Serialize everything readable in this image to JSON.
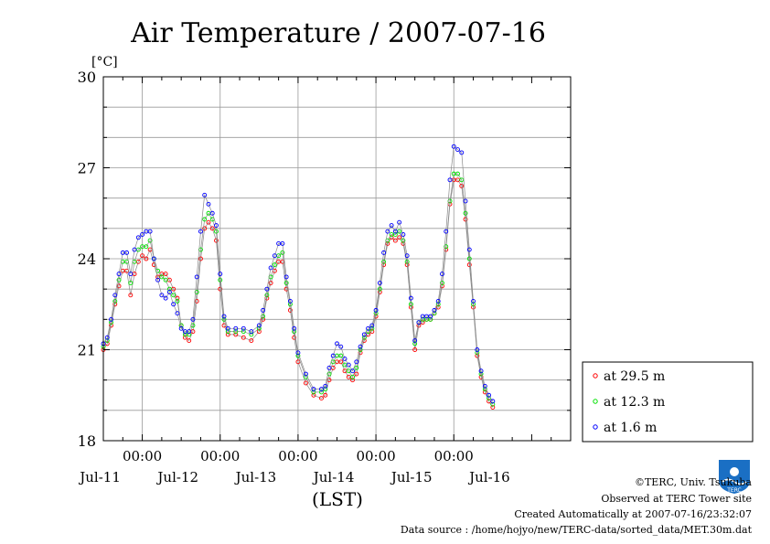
{
  "chart_data": {
    "type": "line",
    "title": "Air Temperature / 2007-07-16",
    "y_unit": "[°C]",
    "xlabel": "(LST)",
    "ylim": [
      18,
      30
    ],
    "yticks": [
      18,
      21,
      24,
      27,
      30
    ],
    "xlim": [
      0,
      6
    ],
    "x_unit": "days from 2007-07-10 12:00 LST",
    "x_time_ticks": [
      {
        "x": 0.5,
        "label": "00:00"
      },
      {
        "x": 1.5,
        "label": "00:00"
      },
      {
        "x": 2.5,
        "label": "00:00"
      },
      {
        "x": 3.5,
        "label": "00:00"
      },
      {
        "x": 4.5,
        "label": "00:00"
      }
    ],
    "x_day_labels": [
      {
        "x": 0.5,
        "label": "Jul-11"
      },
      {
        "x": 1.5,
        "label": "Jul-12"
      },
      {
        "x": 2.5,
        "label": "Jul-13"
      },
      {
        "x": 3.5,
        "label": "Jul-14"
      },
      {
        "x": 4.5,
        "label": "Jul-15"
      },
      {
        "x": 5.5,
        "label": "Jul-16"
      }
    ],
    "grid": true,
    "legend_position": "right-bottom (outside plot)",
    "series": [
      {
        "name": "at 29.5 m",
        "color": "#ff0000",
        "points": [
          [
            0,
            21.0
          ],
          [
            0.05,
            21.2
          ],
          [
            0.1,
            21.8
          ],
          [
            0.15,
            22.5
          ],
          [
            0.2,
            23.1
          ],
          [
            0.25,
            23.6
          ],
          [
            0.3,
            23.6
          ],
          [
            0.35,
            22.8
          ],
          [
            0.4,
            23.5
          ],
          [
            0.45,
            23.9
          ],
          [
            0.5,
            24.1
          ],
          [
            0.55,
            24.0
          ],
          [
            0.6,
            24.3
          ],
          [
            0.65,
            23.8
          ],
          [
            0.7,
            23.4
          ],
          [
            0.75,
            23.5
          ],
          [
            0.8,
            23.5
          ],
          [
            0.85,
            23.3
          ],
          [
            0.9,
            23.0
          ],
          [
            0.95,
            22.7
          ],
          [
            1.0,
            21.8
          ],
          [
            1.05,
            21.4
          ],
          [
            1.1,
            21.3
          ],
          [
            1.15,
            21.6
          ],
          [
            1.2,
            22.6
          ],
          [
            1.25,
            24.0
          ],
          [
            1.3,
            25.0
          ],
          [
            1.35,
            25.2
          ],
          [
            1.4,
            25.0
          ],
          [
            1.45,
            24.6
          ],
          [
            1.5,
            23.0
          ],
          [
            1.55,
            21.8
          ],
          [
            1.6,
            21.5
          ],
          [
            1.7,
            21.5
          ],
          [
            1.8,
            21.4
          ],
          [
            1.9,
            21.3
          ],
          [
            2.0,
            21.6
          ],
          [
            2.05,
            22.0
          ],
          [
            2.1,
            22.7
          ],
          [
            2.15,
            23.2
          ],
          [
            2.2,
            23.6
          ],
          [
            2.25,
            23.9
          ],
          [
            2.3,
            23.9
          ],
          [
            2.35,
            23.0
          ],
          [
            2.4,
            22.3
          ],
          [
            2.45,
            21.4
          ],
          [
            2.5,
            20.6
          ],
          [
            2.6,
            19.9
          ],
          [
            2.7,
            19.5
          ],
          [
            2.8,
            19.4
          ],
          [
            2.85,
            19.5
          ],
          [
            2.9,
            20.0
          ],
          [
            2.95,
            20.4
          ],
          [
            3.0,
            20.6
          ],
          [
            3.05,
            20.6
          ],
          [
            3.1,
            20.3
          ],
          [
            3.15,
            20.1
          ],
          [
            3.2,
            20.0
          ],
          [
            3.25,
            20.2
          ],
          [
            3.3,
            20.9
          ],
          [
            3.35,
            21.3
          ],
          [
            3.4,
            21.5
          ],
          [
            3.45,
            21.6
          ],
          [
            3.5,
            22.1
          ],
          [
            3.55,
            22.9
          ],
          [
            3.6,
            23.8
          ],
          [
            3.65,
            24.5
          ],
          [
            3.7,
            24.7
          ],
          [
            3.75,
            24.6
          ],
          [
            3.8,
            24.7
          ],
          [
            3.85,
            24.5
          ],
          [
            3.9,
            23.8
          ],
          [
            3.95,
            22.4
          ],
          [
            4.0,
            21.0
          ],
          [
            4.05,
            21.8
          ],
          [
            4.1,
            21.9
          ],
          [
            4.15,
            22.0
          ],
          [
            4.2,
            22.0
          ],
          [
            4.25,
            22.2
          ],
          [
            4.3,
            22.4
          ],
          [
            4.35,
            23.1
          ],
          [
            4.4,
            24.3
          ],
          [
            4.45,
            25.8
          ],
          [
            4.5,
            26.6
          ],
          [
            4.55,
            26.6
          ],
          [
            4.6,
            26.4
          ],
          [
            4.65,
            25.3
          ],
          [
            4.7,
            23.8
          ],
          [
            4.75,
            22.4
          ],
          [
            4.8,
            20.8
          ],
          [
            4.85,
            20.1
          ],
          [
            4.9,
            19.6
          ],
          [
            4.95,
            19.3
          ],
          [
            5.0,
            19.1
          ]
        ]
      },
      {
        "name": "at 12.3 m",
        "color": "#00e000",
        "points": [
          [
            0,
            21.1
          ],
          [
            0.05,
            21.3
          ],
          [
            0.1,
            21.9
          ],
          [
            0.15,
            22.6
          ],
          [
            0.2,
            23.3
          ],
          [
            0.25,
            23.9
          ],
          [
            0.3,
            23.9
          ],
          [
            0.35,
            23.2
          ],
          [
            0.4,
            23.9
          ],
          [
            0.45,
            24.3
          ],
          [
            0.5,
            24.4
          ],
          [
            0.55,
            24.4
          ],
          [
            0.6,
            24.6
          ],
          [
            0.65,
            24.0
          ],
          [
            0.7,
            23.6
          ],
          [
            0.75,
            23.4
          ],
          [
            0.8,
            23.3
          ],
          [
            0.85,
            23.0
          ],
          [
            0.9,
            22.8
          ],
          [
            0.95,
            22.6
          ],
          [
            1.0,
            21.8
          ],
          [
            1.05,
            21.5
          ],
          [
            1.1,
            21.5
          ],
          [
            1.15,
            21.8
          ],
          [
            1.2,
            22.9
          ],
          [
            1.25,
            24.3
          ],
          [
            1.3,
            25.3
          ],
          [
            1.35,
            25.5
          ],
          [
            1.4,
            25.3
          ],
          [
            1.45,
            24.9
          ],
          [
            1.5,
            23.3
          ],
          [
            1.55,
            22.0
          ],
          [
            1.6,
            21.6
          ],
          [
            1.7,
            21.6
          ],
          [
            1.8,
            21.6
          ],
          [
            1.9,
            21.5
          ],
          [
            2.0,
            21.7
          ],
          [
            2.05,
            22.1
          ],
          [
            2.1,
            22.8
          ],
          [
            2.15,
            23.4
          ],
          [
            2.2,
            23.8
          ],
          [
            2.25,
            24.1
          ],
          [
            2.3,
            24.2
          ],
          [
            2.35,
            23.2
          ],
          [
            2.4,
            22.5
          ],
          [
            2.45,
            21.6
          ],
          [
            2.5,
            20.8
          ],
          [
            2.6,
            20.1
          ],
          [
            2.7,
            19.6
          ],
          [
            2.8,
            19.6
          ],
          [
            2.85,
            19.7
          ],
          [
            2.9,
            20.2
          ],
          [
            2.95,
            20.6
          ],
          [
            3.0,
            20.8
          ],
          [
            3.05,
            20.8
          ],
          [
            3.1,
            20.5
          ],
          [
            3.15,
            20.3
          ],
          [
            3.2,
            20.1
          ],
          [
            3.25,
            20.4
          ],
          [
            3.3,
            21.0
          ],
          [
            3.35,
            21.4
          ],
          [
            3.4,
            21.6
          ],
          [
            3.45,
            21.7
          ],
          [
            3.5,
            22.2
          ],
          [
            3.55,
            23.0
          ],
          [
            3.6,
            23.9
          ],
          [
            3.65,
            24.6
          ],
          [
            3.7,
            24.8
          ],
          [
            3.75,
            24.8
          ],
          [
            3.8,
            24.9
          ],
          [
            3.85,
            24.6
          ],
          [
            3.9,
            23.9
          ],
          [
            3.95,
            22.5
          ],
          [
            4.0,
            21.2
          ],
          [
            4.05,
            21.9
          ],
          [
            4.1,
            22.0
          ],
          [
            4.15,
            22.0
          ],
          [
            4.2,
            22.0
          ],
          [
            4.25,
            22.2
          ],
          [
            4.3,
            22.5
          ],
          [
            4.35,
            23.2
          ],
          [
            4.4,
            24.4
          ],
          [
            4.45,
            25.9
          ],
          [
            4.5,
            26.8
          ],
          [
            4.55,
            26.8
          ],
          [
            4.6,
            26.6
          ],
          [
            4.65,
            25.5
          ],
          [
            4.7,
            24.0
          ],
          [
            4.75,
            22.5
          ],
          [
            4.8,
            20.9
          ],
          [
            4.85,
            20.2
          ],
          [
            4.9,
            19.7
          ],
          [
            4.95,
            19.4
          ],
          [
            5.0,
            19.2
          ]
        ]
      },
      {
        "name": "at 1.6 m",
        "color": "#0000ff",
        "points": [
          [
            0,
            21.2
          ],
          [
            0.05,
            21.4
          ],
          [
            0.1,
            22.0
          ],
          [
            0.15,
            22.8
          ],
          [
            0.2,
            23.5
          ],
          [
            0.25,
            24.2
          ],
          [
            0.3,
            24.2
          ],
          [
            0.35,
            23.5
          ],
          [
            0.4,
            24.3
          ],
          [
            0.45,
            24.7
          ],
          [
            0.5,
            24.8
          ],
          [
            0.55,
            24.9
          ],
          [
            0.6,
            24.9
          ],
          [
            0.65,
            24.0
          ],
          [
            0.7,
            23.3
          ],
          [
            0.75,
            22.8
          ],
          [
            0.8,
            22.7
          ],
          [
            0.85,
            22.9
          ],
          [
            0.9,
            22.5
          ],
          [
            0.95,
            22.2
          ],
          [
            1.0,
            21.7
          ],
          [
            1.05,
            21.6
          ],
          [
            1.1,
            21.6
          ],
          [
            1.15,
            22.0
          ],
          [
            1.2,
            23.4
          ],
          [
            1.25,
            24.9
          ],
          [
            1.3,
            26.1
          ],
          [
            1.35,
            25.8
          ],
          [
            1.4,
            25.5
          ],
          [
            1.45,
            25.1
          ],
          [
            1.5,
            23.5
          ],
          [
            1.55,
            22.1
          ],
          [
            1.6,
            21.7
          ],
          [
            1.7,
            21.7
          ],
          [
            1.8,
            21.7
          ],
          [
            1.9,
            21.6
          ],
          [
            2.0,
            21.8
          ],
          [
            2.05,
            22.3
          ],
          [
            2.1,
            23.0
          ],
          [
            2.15,
            23.7
          ],
          [
            2.2,
            24.1
          ],
          [
            2.25,
            24.5
          ],
          [
            2.3,
            24.5
          ],
          [
            2.35,
            23.4
          ],
          [
            2.4,
            22.6
          ],
          [
            2.45,
            21.7
          ],
          [
            2.5,
            20.9
          ],
          [
            2.6,
            20.2
          ],
          [
            2.7,
            19.7
          ],
          [
            2.8,
            19.7
          ],
          [
            2.85,
            19.8
          ],
          [
            2.9,
            20.4
          ],
          [
            2.95,
            20.8
          ],
          [
            3.0,
            21.2
          ],
          [
            3.05,
            21.1
          ],
          [
            3.1,
            20.7
          ],
          [
            3.15,
            20.5
          ],
          [
            3.2,
            20.3
          ],
          [
            3.25,
            20.6
          ],
          [
            3.3,
            21.1
          ],
          [
            3.35,
            21.5
          ],
          [
            3.4,
            21.7
          ],
          [
            3.45,
            21.8
          ],
          [
            3.5,
            22.3
          ],
          [
            3.55,
            23.2
          ],
          [
            3.6,
            24.2
          ],
          [
            3.65,
            24.9
          ],
          [
            3.7,
            25.1
          ],
          [
            3.75,
            24.9
          ],
          [
            3.8,
            25.2
          ],
          [
            3.85,
            24.8
          ],
          [
            3.9,
            24.1
          ],
          [
            3.95,
            22.7
          ],
          [
            4.0,
            21.3
          ],
          [
            4.05,
            21.9
          ],
          [
            4.1,
            22.1
          ],
          [
            4.15,
            22.1
          ],
          [
            4.2,
            22.1
          ],
          [
            4.25,
            22.3
          ],
          [
            4.3,
            22.6
          ],
          [
            4.35,
            23.5
          ],
          [
            4.4,
            24.9
          ],
          [
            4.45,
            26.6
          ],
          [
            4.5,
            27.7
          ],
          [
            4.55,
            27.6
          ],
          [
            4.6,
            27.5
          ],
          [
            4.65,
            25.9
          ],
          [
            4.7,
            24.3
          ],
          [
            4.75,
            22.6
          ],
          [
            4.8,
            21.0
          ],
          [
            4.85,
            20.3
          ],
          [
            4.9,
            19.8
          ],
          [
            4.95,
            19.5
          ],
          [
            5.0,
            19.3
          ]
        ]
      }
    ]
  },
  "footer": {
    "copyright": "©TERC, Univ. Tsukuba",
    "observed": "Observed at TERC Tower site",
    "created": "Created Automatically at 2007-07-16/23:32:07",
    "source": "Data source : /home/hojyo/new/TERC-data/sorted_data/MET.30m.dat"
  },
  "logo": {
    "text": "TERC",
    "color": "#1a6fc4"
  }
}
